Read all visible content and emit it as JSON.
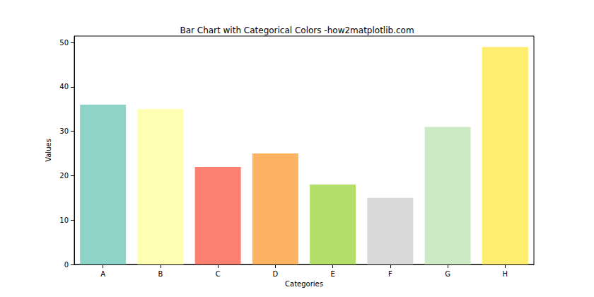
{
  "chart_data": {
    "type": "bar",
    "title": "Bar Chart with Categorical Colors -how2matplotlib.com",
    "x_label": "Categories",
    "y_label": "Values",
    "categories": [
      "A",
      "B",
      "C",
      "D",
      "E",
      "F",
      "G",
      "H"
    ],
    "values": [
      36,
      35,
      22,
      25,
      18,
      15,
      31,
      49
    ],
    "colors": [
      "#8dd3c7",
      "#ffffb3",
      "#fb8072",
      "#fdb462",
      "#b3de69",
      "#d9d9d9",
      "#ccebc5",
      "#ffed6f"
    ],
    "ylim": [
      0,
      51.45
    ],
    "yticks": [
      0,
      10,
      20,
      30,
      40,
      50
    ],
    "grid": false
  }
}
